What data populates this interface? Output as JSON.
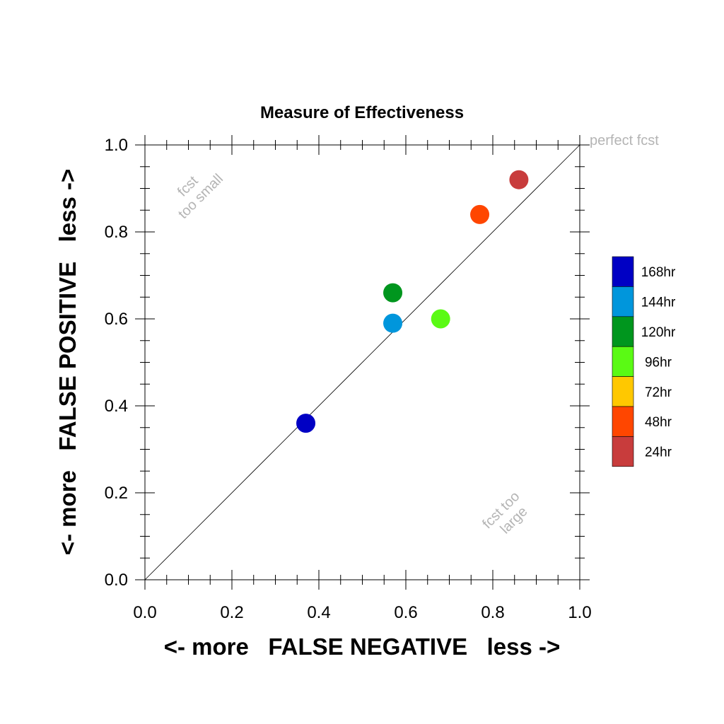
{
  "chart_data": {
    "type": "scatter",
    "title": "Measure of Effectiveness",
    "xlabel": "<- more   FALSE NEGATIVE   less ->",
    "ylabel": "<- more   FALSE POSITIVE   less ->",
    "xlim": [
      0.0,
      1.0
    ],
    "ylim": [
      0.0,
      1.0
    ],
    "xticks": [
      "0.0",
      "0.2",
      "0.4",
      "0.6",
      "0.8",
      "1.0"
    ],
    "yticks": [
      "0.0",
      "0.2",
      "0.4",
      "0.6",
      "0.8",
      "1.0"
    ],
    "grid": false,
    "reference_line": {
      "from": [
        0,
        0
      ],
      "to": [
        1,
        1
      ],
      "label": "perfect fcst"
    },
    "annotations": {
      "upper_left": [
        "fcst",
        "too small"
      ],
      "lower_right": [
        "fcst too",
        "large"
      ]
    },
    "points": [
      {
        "label": "168hr",
        "x": 0.37,
        "y": 0.36,
        "color": "#0000c4"
      },
      {
        "label": "144hr",
        "x": 0.57,
        "y": 0.59,
        "color": "#0096dc"
      },
      {
        "label": "120hr",
        "x": 0.57,
        "y": 0.66,
        "color": "#00961e"
      },
      {
        "label": "96hr",
        "x": 0.68,
        "y": 0.6,
        "color": "#5afa14"
      },
      {
        "label": "48hr",
        "x": 0.77,
        "y": 0.84,
        "color": "#ff4600"
      },
      {
        "label": "24hr",
        "x": 0.86,
        "y": 0.92,
        "color": "#c83c3c"
      }
    ],
    "legend": {
      "position": "right",
      "entries": [
        {
          "label": "168hr",
          "color": "#0000c4"
        },
        {
          "label": "144hr",
          "color": "#0096dc"
        },
        {
          "label": "120hr",
          "color": "#00961e"
        },
        {
          "label": "96hr",
          "color": "#5afa14"
        },
        {
          "label": "72hr",
          "color": "#ffc800"
        },
        {
          "label": "48hr",
          "color": "#ff4600"
        },
        {
          "label": "24hr",
          "color": "#c83c3c"
        }
      ]
    }
  }
}
